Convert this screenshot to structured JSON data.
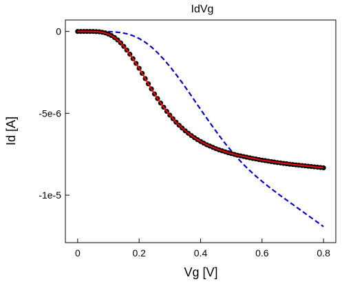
{
  "chart_data": {
    "type": "line",
    "title": "IdVg",
    "xlabel": "Vg [V]",
    "ylabel": "Id [A]",
    "xlim": [
      -0.04,
      0.84
    ],
    "ylim": [
      -1.29e-05,
      7e-07
    ],
    "x_ticks": [
      {
        "value": 0,
        "label": "0"
      },
      {
        "value": 0.2,
        "label": "0.2"
      },
      {
        "value": 0.4,
        "label": "0.4"
      },
      {
        "value": 0.6,
        "label": "0.6"
      },
      {
        "value": 0.8,
        "label": "0.8"
      }
    ],
    "y_ticks": [
      {
        "value": 0,
        "label": "0"
      },
      {
        "value": -5e-06,
        "label": "-5e-6"
      },
      {
        "value": -1e-05,
        "label": "-1e-5"
      }
    ],
    "grid": false,
    "legend": "none",
    "series": [
      {
        "kind": "scatter",
        "color": "#000000",
        "x": [
          0.0,
          0.01,
          0.02,
          0.03,
          0.04,
          0.05,
          0.06,
          0.07,
          0.08,
          0.09,
          0.1,
          0.11,
          0.12,
          0.13,
          0.14,
          0.15,
          0.16,
          0.17,
          0.18,
          0.19,
          0.2,
          0.21,
          0.22,
          0.23,
          0.24,
          0.25,
          0.26,
          0.27,
          0.28,
          0.29,
          0.3,
          0.31,
          0.32,
          0.33,
          0.34,
          0.35,
          0.36,
          0.37,
          0.38,
          0.39,
          0.4,
          0.41,
          0.42,
          0.43,
          0.44,
          0.45,
          0.46,
          0.47,
          0.48,
          0.49,
          0.5,
          0.51,
          0.52,
          0.53,
          0.54,
          0.55,
          0.56,
          0.57,
          0.58,
          0.59,
          0.6,
          0.61,
          0.62,
          0.63,
          0.64,
          0.65,
          0.66,
          0.67,
          0.68,
          0.69,
          0.7,
          0.71,
          0.72,
          0.73,
          0.74,
          0.75,
          0.76,
          0.77,
          0.78,
          0.79,
          0.8
        ],
        "y": [
          0,
          0,
          0,
          0,
          0,
          0,
          -1e-08,
          -2e-08,
          -5e-08,
          -9e-08,
          -1.6e-07,
          -2.5e-07,
          -3.7e-07,
          -5.2e-07,
          -7e-07,
          -9.1e-07,
          -1.14e-06,
          -1.39e-06,
          -1.66e-06,
          -1.95e-06,
          -2.25e-06,
          -2.56e-06,
          -2.88e-06,
          -3.2e-06,
          -3.51e-06,
          -3.82e-06,
          -4.1e-06,
          -4.37e-06,
          -4.63e-06,
          -4.88e-06,
          -5.11e-06,
          -5.33e-06,
          -5.54e-06,
          -5.73e-06,
          -5.9e-06,
          -6.07e-06,
          -6.22e-06,
          -6.36e-06,
          -6.49e-06,
          -6.61e-06,
          -6.72e-06,
          -6.82e-06,
          -6.92e-06,
          -7e-06,
          -7.08e-06,
          -7.16e-06,
          -7.23e-06,
          -7.29e-06,
          -7.35e-06,
          -7.41e-06,
          -7.46e-06,
          -7.51e-06,
          -7.56e-06,
          -7.6e-06,
          -7.64e-06,
          -7.68e-06,
          -7.72e-06,
          -7.76e-06,
          -7.79e-06,
          -7.83e-06,
          -7.86e-06,
          -7.89e-06,
          -7.92e-06,
          -7.95e-06,
          -7.98e-06,
          -8.01e-06,
          -8.03e-06,
          -8.06e-06,
          -8.08e-06,
          -8.11e-06,
          -8.13e-06,
          -8.15e-06,
          -8.17e-06,
          -8.19e-06,
          -8.21e-06,
          -8.23e-06,
          -8.25e-06,
          -8.27e-06,
          -8.29e-06,
          -8.31e-06,
          -8.33e-06
        ]
      },
      {
        "kind": "line",
        "color": "#ff0000",
        "style": "solid",
        "x": [
          0.0,
          0.02,
          0.04,
          0.06,
          0.08,
          0.1,
          0.12,
          0.14,
          0.16,
          0.18,
          0.2,
          0.22,
          0.24,
          0.26,
          0.28,
          0.3,
          0.32,
          0.34,
          0.36,
          0.38,
          0.4,
          0.42,
          0.44,
          0.46,
          0.48,
          0.5,
          0.52,
          0.54,
          0.56,
          0.58,
          0.6,
          0.62,
          0.64,
          0.66,
          0.68,
          0.7,
          0.72,
          0.74,
          0.76,
          0.78,
          0.8
        ],
        "y": [
          0,
          0,
          0,
          -1e-08,
          -5e-08,
          -1.6e-07,
          -3.7e-07,
          -7e-07,
          -1.14e-06,
          -1.66e-06,
          -2.25e-06,
          -2.88e-06,
          -3.51e-06,
          -4.1e-06,
          -4.63e-06,
          -5.11e-06,
          -5.54e-06,
          -5.9e-06,
          -6.22e-06,
          -6.49e-06,
          -6.72e-06,
          -6.92e-06,
          -7.08e-06,
          -7.23e-06,
          -7.35e-06,
          -7.46e-06,
          -7.56e-06,
          -7.64e-06,
          -7.72e-06,
          -7.79e-06,
          -7.86e-06,
          -7.92e-06,
          -7.98e-06,
          -8.03e-06,
          -8.08e-06,
          -8.13e-06,
          -8.17e-06,
          -8.21e-06,
          -8.25e-06,
          -8.29e-06,
          -8.33e-06
        ]
      },
      {
        "kind": "line",
        "color": "#0000dd",
        "style": "dashed",
        "x": [
          0.0,
          0.02,
          0.04,
          0.06,
          0.08,
          0.1,
          0.12,
          0.14,
          0.16,
          0.18,
          0.2,
          0.22,
          0.24,
          0.26,
          0.28,
          0.3,
          0.32,
          0.34,
          0.36,
          0.38,
          0.4,
          0.42,
          0.44,
          0.46,
          0.48,
          0.5,
          0.52,
          0.54,
          0.56,
          0.58,
          0.6,
          0.62,
          0.64,
          0.66,
          0.68,
          0.7,
          0.72,
          0.74,
          0.76,
          0.78,
          0.8
        ],
        "y": [
          0,
          0,
          0,
          0,
          0,
          -1e-08,
          -3e-08,
          -7e-08,
          -1.4e-07,
          -2.6e-07,
          -4.3e-07,
          -6.6e-07,
          -9.5e-07,
          -1.3e-06,
          -1.7e-06,
          -2.14e-06,
          -2.62e-06,
          -3.13e-06,
          -3.66e-06,
          -4.21e-06,
          -4.76e-06,
          -5.3e-06,
          -5.83e-06,
          -6.35e-06,
          -6.84e-06,
          -7.3e-06,
          -7.73e-06,
          -8.13e-06,
          -8.5e-06,
          -8.84e-06,
          -9.16e-06,
          -9.46e-06,
          -9.75e-06,
          -1.003e-05,
          -1.03e-05,
          -1.057e-05,
          -1.084e-05,
          -1.111e-05,
          -1.138e-05,
          -1.165e-05,
          -1.192e-05
        ]
      }
    ]
  }
}
